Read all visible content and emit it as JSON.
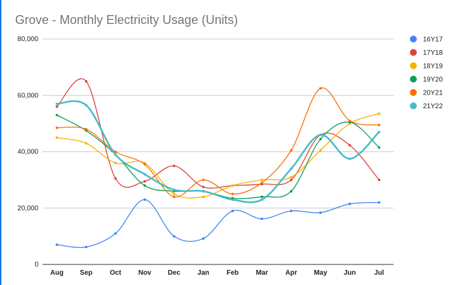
{
  "chart_data": {
    "type": "line",
    "title": "Grove - Monthly Electricity Usage (Units)",
    "xlabel": "",
    "ylabel": "",
    "ylim": [
      0,
      80000
    ],
    "yticks": [
      0,
      20000,
      40000,
      60000,
      80000
    ],
    "ytick_labels": [
      "0",
      "20,000",
      "40,000",
      "60,000",
      "80,000"
    ],
    "grid": true,
    "legend_position": "right",
    "categories": [
      "Aug",
      "Sep",
      "Oct",
      "Nov",
      "Dec",
      "Jan",
      "Feb",
      "Mar",
      "Apr",
      "May",
      "Jun",
      "Jul"
    ],
    "series": [
      {
        "name": "16Y17",
        "color": "#4285f4",
        "values": [
          7000,
          6200,
          11000,
          23000,
          10000,
          9200,
          19000,
          16200,
          19000,
          18400,
          21500,
          22000
        ]
      },
      {
        "name": "17Y18",
        "color": "#db4437",
        "values": [
          56000,
          65000,
          30500,
          29500,
          35000,
          27500,
          28000,
          28500,
          30000,
          46000,
          42300,
          30000
        ]
      },
      {
        "name": "18Y19",
        "color": "#f4b400",
        "values": [
          45000,
          43000,
          36000,
          36000,
          25000,
          24000,
          28000,
          30000,
          31000,
          40500,
          50000,
          53500
        ]
      },
      {
        "name": "19Y20",
        "color": "#0f9d58",
        "values": [
          53000,
          47500,
          39000,
          28000,
          26000,
          26000,
          23500,
          24000,
          26000,
          44500,
          50500,
          41500
        ]
      },
      {
        "name": "20Y21",
        "color": "#ff6d01",
        "values": [
          48500,
          48000,
          40000,
          35500,
          24000,
          30000,
          25000,
          29000,
          40500,
          62500,
          51000,
          49500
        ]
      },
      {
        "name": "21Y22",
        "color": "#46bdc6",
        "values": [
          57000,
          56500,
          39000,
          32000,
          26500,
          26000,
          23000,
          23000,
          34000,
          46000,
          37500,
          47000
        ]
      }
    ]
  }
}
